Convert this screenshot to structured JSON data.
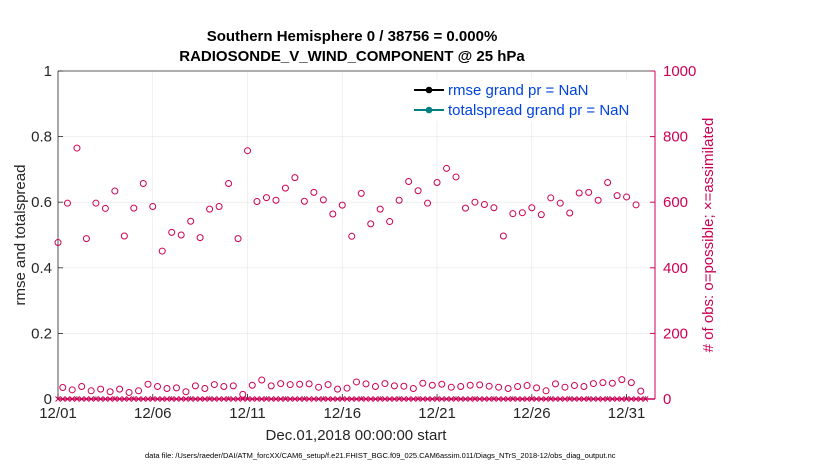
{
  "chart_data": {
    "type": "line",
    "title": "Southern Hemisphere 0 / 38756 = 0.000%",
    "subtitle": "RADIOSONDE_V_WIND_COMPONENT @ 25 hPa",
    "xlabel": "Dec.01,2018 00:00:00 start",
    "ylabel": "rmse and totalspread",
    "y2label": "# of obs: o=possible; ×=assimilated",
    "footer": "data file: /Users/raeder/DAI/ATM_forcXX/CAM6_setup/f.e21.FHIST_BGC.f09_025.CAM6assim.011/Diags_NTrS_2018-12/obs_diag_output.nc",
    "xlim": [
      0,
      31.5
    ],
    "ylim": [
      0,
      1
    ],
    "y2lim": [
      0,
      1000
    ],
    "x_ticks": [
      {
        "label": "12/01",
        "day": 0
      },
      {
        "label": "12/06",
        "day": 5
      },
      {
        "label": "12/11",
        "day": 10
      },
      {
        "label": "12/16",
        "day": 15
      },
      {
        "label": "12/21",
        "day": 20
      },
      {
        "label": "12/26",
        "day": 25
      },
      {
        "label": "12/31",
        "day": 30
      }
    ],
    "y_ticks": [
      "0",
      "0.2",
      "0.4",
      "0.6",
      "0.8",
      "1"
    ],
    "y2_ticks": [
      "0",
      "200",
      "400",
      "600",
      "800",
      "1000"
    ],
    "legend": [
      {
        "label": "rmse grand pr = NaN",
        "color": "#000000"
      },
      {
        "label": "totalspread grand pr = NaN",
        "color": "#008080"
      }
    ],
    "series": [
      {
        "name": "rmse",
        "values": []
      },
      {
        "name": "totalspread",
        "values": []
      },
      {
        "name": "possible obs (upper, 00Z/12Z)",
        "color": "#cc0055",
        "x": [
          0,
          0.5,
          1,
          1.5,
          2,
          2.5,
          3,
          3.5,
          4,
          4.5,
          5,
          5.5,
          6,
          6.5,
          7,
          7.5,
          8,
          8.5,
          9,
          9.5,
          10,
          10.5,
          11,
          11.5,
          12,
          12.5,
          13,
          13.5,
          14,
          14.5,
          15,
          15.5,
          16,
          16.5,
          17,
          17.5,
          18,
          18.5,
          19,
          19.5,
          20,
          20.5,
          21,
          21.5,
          22,
          22.5,
          23,
          23.5,
          24,
          24.5,
          25,
          25.5,
          26,
          26.5,
          27,
          27.5,
          28,
          28.5,
          29,
          29.5,
          30,
          30.5
        ],
        "values": [
          477,
          597,
          765,
          489,
          597,
          581,
          634,
          497,
          582,
          657,
          587,
          451,
          508,
          500,
          542,
          492,
          579,
          587,
          657,
          489,
          757,
          602,
          614,
          606,
          643,
          675,
          603,
          630,
          607,
          564,
          591,
          496,
          627,
          534,
          579,
          541,
          606,
          663,
          635,
          597,
          660,
          703,
          677,
          582,
          600,
          593,
          583,
          497,
          565,
          568,
          583,
          562,
          613,
          597,
          567,
          628,
          630,
          606,
          660,
          620,
          616,
          592
        ]
      },
      {
        "name": "possible obs (lower, 06Z/18Z)",
        "color": "#cc0055",
        "x": [
          0.25,
          0.75,
          1.25,
          1.75,
          2.25,
          2.75,
          3.25,
          3.75,
          4.25,
          4.75,
          5.25,
          5.75,
          6.25,
          6.75,
          7.25,
          7.75,
          8.25,
          8.75,
          9.25,
          9.75,
          10.25,
          10.75,
          11.25,
          11.75,
          12.25,
          12.75,
          13.25,
          13.75,
          14.25,
          14.75,
          15.25,
          15.75,
          16.25,
          16.75,
          17.25,
          17.75,
          18.25,
          18.75,
          19.25,
          19.75,
          20.25,
          20.75,
          21.25,
          21.75,
          22.25,
          22.75,
          23.25,
          23.75,
          24.25,
          24.75,
          25.25,
          25.75,
          26.25,
          26.75,
          27.25,
          27.75,
          28.25,
          28.75,
          29.25,
          29.75,
          30.25,
          30.75
        ],
        "values": [
          35,
          28,
          38,
          25,
          30,
          22,
          30,
          20,
          25,
          45,
          38,
          32,
          34,
          22,
          40,
          32,
          44,
          38,
          40,
          14,
          42,
          58,
          40,
          47,
          44,
          45,
          46,
          36,
          44,
          30,
          33,
          52,
          46,
          38,
          47,
          40,
          39,
          32,
          48,
          42,
          45,
          36,
          38,
          42,
          43,
          39,
          36,
          32,
          38,
          41,
          34,
          25,
          46,
          36,
          41,
          38,
          47,
          50,
          48,
          59,
          50,
          24
        ]
      },
      {
        "name": "assimilated obs",
        "color": "#cc0055",
        "values_note": "all 0",
        "value": 0
      }
    ]
  }
}
